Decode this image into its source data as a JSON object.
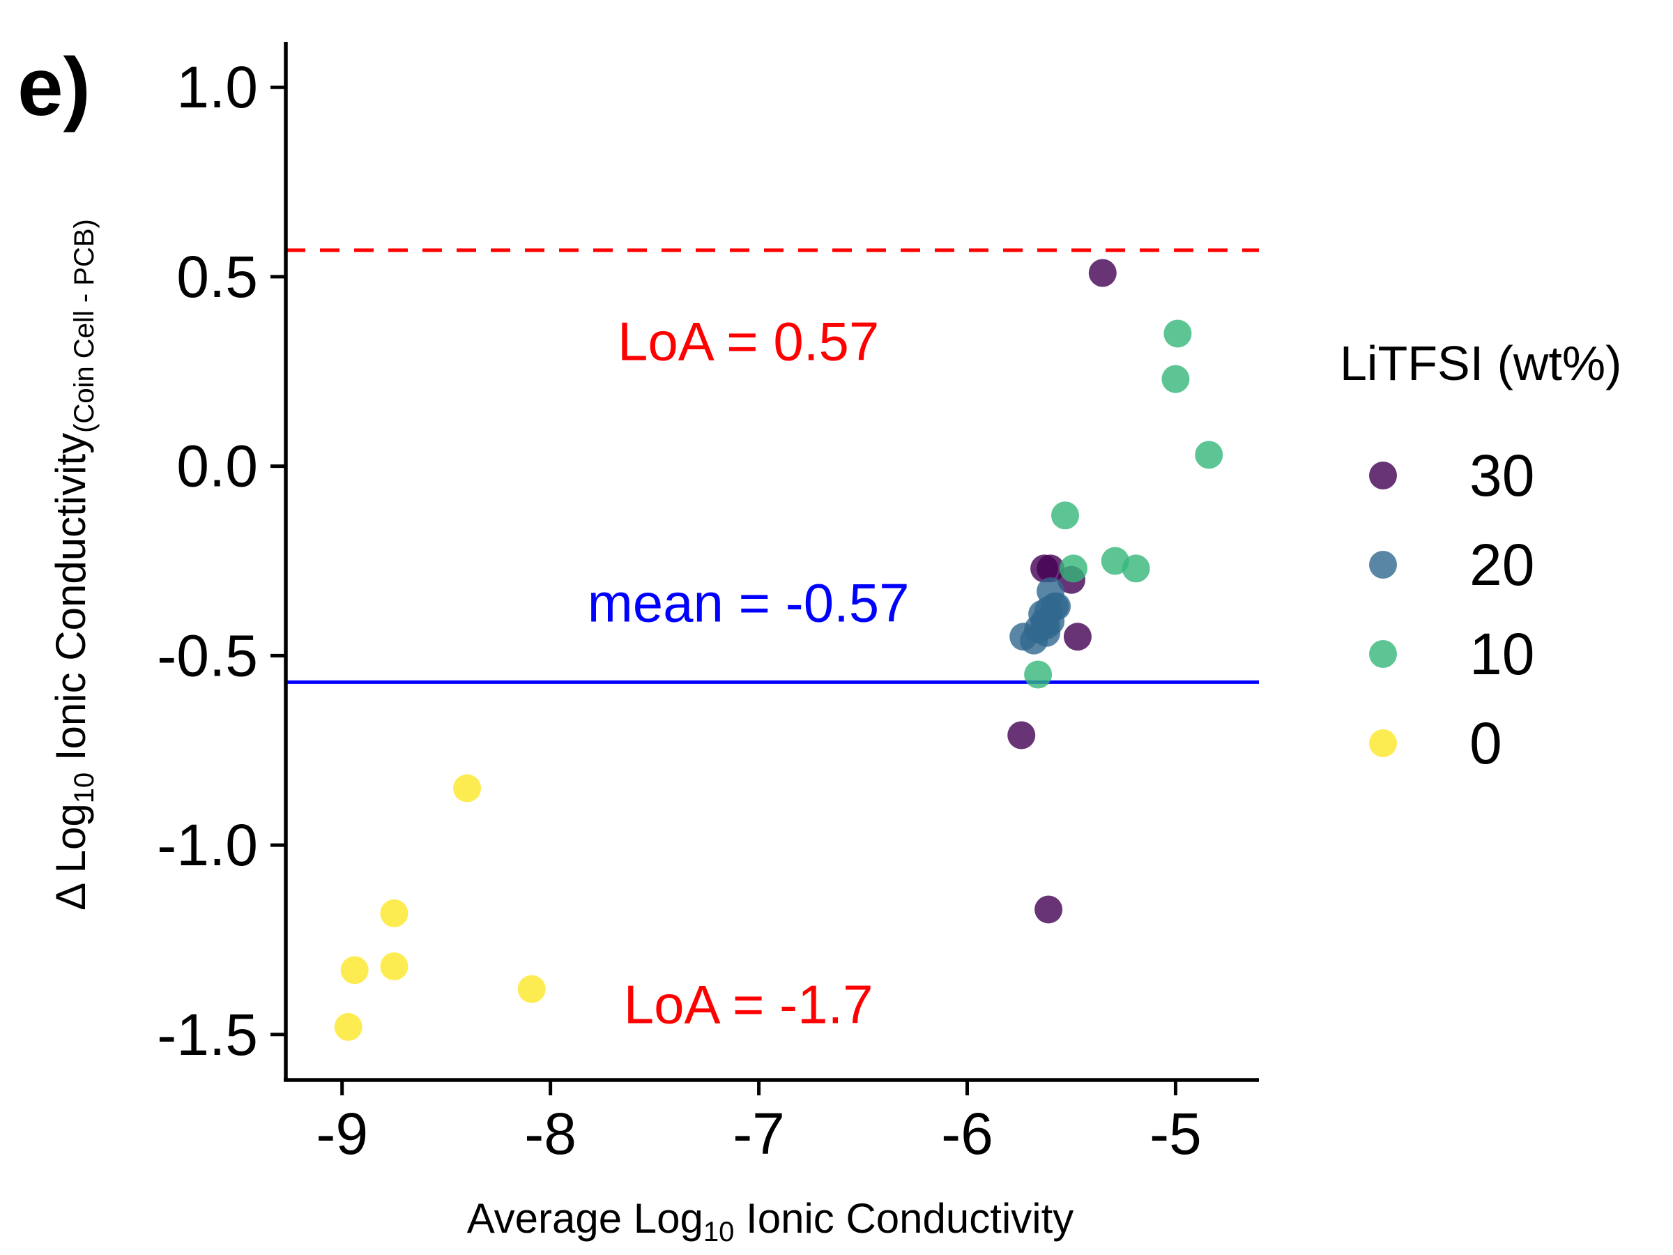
{
  "panel_label": "e)",
  "chart_data": {
    "type": "scatter",
    "title": "",
    "xlabel": {
      "pre": "Average Log",
      "sub": "10",
      "post": " Ionic Conductivity"
    },
    "ylabel": {
      "pre": "Δ Log",
      "sub": "10",
      "post": " Ionic Conductivity",
      "sub2": "(Coin Cell - PCB)"
    },
    "xlim": [
      -9.27,
      -4.6
    ],
    "ylim": [
      -1.62,
      1.12
    ],
    "x_ticks": [
      -9,
      -8,
      -7,
      -6,
      -5
    ],
    "x_tick_labels": [
      "-9",
      "-8",
      "-7",
      "-6",
      "-5"
    ],
    "y_ticks": [
      -1.5,
      -1.0,
      -0.5,
      0.0,
      0.5,
      1.0
    ],
    "y_tick_labels": [
      "-1.5",
      "-1.0",
      "-0.5",
      "0.0",
      "0.5",
      "1.0"
    ],
    "grid": false,
    "legend": {
      "title": "LiTFSI (wt%)",
      "placement": "right",
      "entries": [
        {
          "label": "30",
          "color": "#440154"
        },
        {
          "label": "20",
          "color": "#31688e"
        },
        {
          "label": "10",
          "color": "#35b779"
        },
        {
          "label": "0",
          "color": "#fde725"
        }
      ]
    },
    "reference_lines": [
      {
        "y": 0.57,
        "style": "dashed",
        "color": "#ff0000",
        "label": "LoA = 0.57",
        "label_x": -7.05,
        "label_y": 0.28
      },
      {
        "y": -0.57,
        "style": "solid",
        "color": "#0000ff",
        "label": "mean = -0.57",
        "label_x": -7.05,
        "label_y": -0.41
      },
      {
        "y": -1.7,
        "style": "none",
        "color": "#ff0000",
        "label": "LoA = -1.7",
        "label_x": -7.05,
        "label_y": -1.47
      }
    ],
    "marker_opacity": 0.8,
    "series": [
      {
        "name": "30",
        "color": "#440154",
        "x": [
          -5.35,
          -5.6,
          -5.63,
          -5.5,
          -5.47,
          -5.74,
          -5.61
        ],
        "y": [
          0.51,
          -0.27,
          -0.27,
          -0.3,
          -0.45,
          -0.71,
          -1.17
        ]
      },
      {
        "name": "20",
        "color": "#31688e",
        "x": [
          -5.73,
          -5.68,
          -5.66,
          -5.63,
          -5.62,
          -5.6,
          -5.6,
          -5.58,
          -5.57,
          -5.61,
          -5.64,
          -5.62
        ],
        "y": [
          -0.45,
          -0.46,
          -0.43,
          -0.41,
          -0.44,
          -0.41,
          -0.33,
          -0.37,
          -0.37,
          -0.38,
          -0.39,
          -0.42
        ]
      },
      {
        "name": "10",
        "color": "#35b779",
        "x": [
          -4.99,
          -5.0,
          -4.84,
          -5.53,
          -5.49,
          -5.29,
          -5.19,
          -5.66
        ],
        "y": [
          0.35,
          0.23,
          0.03,
          -0.13,
          -0.27,
          -0.25,
          -0.27,
          -0.55
        ]
      },
      {
        "name": "0",
        "color": "#fde725",
        "x": [
          -8.4,
          -8.75,
          -8.94,
          -8.75,
          -8.09,
          -8.97
        ],
        "y": [
          -0.85,
          -1.18,
          -1.33,
          -1.32,
          -1.38,
          -1.48
        ]
      }
    ]
  }
}
